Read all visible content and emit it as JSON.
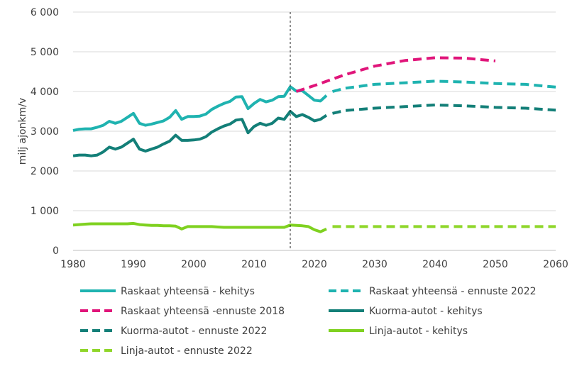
{
  "chart_data": {
    "type": "line",
    "ylabel": "milj ajonkm/v",
    "xlim": [
      1980,
      2060
    ],
    "ylim": [
      0,
      6000
    ],
    "xticks": [
      "1980",
      "1990",
      "2000",
      "2010",
      "2020",
      "2030",
      "2040",
      "2050",
      "2060"
    ],
    "yticks": [
      "0",
      "1 000",
      "2 000",
      "3 000",
      "4 000",
      "5 000",
      "6 000"
    ],
    "grid": true,
    "legend_position": "bottom",
    "reference_line_year": 2016,
    "series": [
      {
        "name": "Raskaat yhteensä - kehitys",
        "color": "#1fb3b0",
        "dashed": false,
        "x": [
          1980,
          1981,
          1982,
          1983,
          1984,
          1985,
          1986,
          1987,
          1988,
          1989,
          1990,
          1991,
          1992,
          1993,
          1994,
          1995,
          1996,
          1997,
          1998,
          1999,
          2000,
          2001,
          2002,
          2003,
          2004,
          2005,
          2006,
          2007,
          2008,
          2009,
          2010,
          2011,
          2012,
          2013,
          2014,
          2015,
          2016,
          2017,
          2018,
          2019,
          2020,
          2021,
          2022
        ],
        "y": [
          3020,
          3050,
          3060,
          3060,
          3100,
          3150,
          3250,
          3200,
          3250,
          3350,
          3450,
          3200,
          3150,
          3180,
          3220,
          3260,
          3350,
          3520,
          3300,
          3370,
          3370,
          3380,
          3430,
          3550,
          3630,
          3700,
          3750,
          3860,
          3870,
          3570,
          3700,
          3800,
          3740,
          3780,
          3870,
          3880,
          4120,
          4010,
          4020,
          3900,
          3780,
          3760,
          3900
        ]
      },
      {
        "name": "Raskaat yhteensä - ennuste 2022",
        "color": "#1fb3b0",
        "dashed": true,
        "x": [
          2023,
          2025,
          2030,
          2035,
          2040,
          2045,
          2050,
          2055,
          2060
        ],
        "y": [
          4000,
          4080,
          4180,
          4220,
          4260,
          4240,
          4200,
          4180,
          4110
        ]
      },
      {
        "name": "Raskaat yhteensä -ennuste 2018",
        "color": "#e0157a",
        "dashed": true,
        "x": [
          2017,
          2020,
          2025,
          2030,
          2035,
          2040,
          2045,
          2050
        ],
        "y": [
          4000,
          4150,
          4420,
          4640,
          4780,
          4850,
          4840,
          4770
        ]
      },
      {
        "name": "Kuorma-autot - kehitys",
        "color": "#137f78",
        "dashed": false,
        "x": [
          1980,
          1981,
          1982,
          1983,
          1984,
          1985,
          1986,
          1987,
          1988,
          1989,
          1990,
          1991,
          1992,
          1993,
          1994,
          1995,
          1996,
          1997,
          1998,
          1999,
          2000,
          2001,
          2002,
          2003,
          2004,
          2005,
          2006,
          2007,
          2008,
          2009,
          2010,
          2011,
          2012,
          2013,
          2014,
          2015,
          2016,
          2017,
          2018,
          2019,
          2020,
          2021,
          2022
        ],
        "y": [
          2380,
          2400,
          2400,
          2380,
          2400,
          2480,
          2600,
          2550,
          2600,
          2700,
          2800,
          2550,
          2500,
          2550,
          2600,
          2680,
          2750,
          2900,
          2770,
          2770,
          2780,
          2800,
          2860,
          2980,
          3060,
          3130,
          3180,
          3280,
          3300,
          2960,
          3120,
          3200,
          3150,
          3200,
          3330,
          3300,
          3500,
          3370,
          3420,
          3350,
          3260,
          3300,
          3400
        ]
      },
      {
        "name": "Kuorma-autot - ennuste 2022",
        "color": "#137f78",
        "dashed": true,
        "x": [
          2023,
          2025,
          2030,
          2035,
          2040,
          2045,
          2050,
          2055,
          2060
        ],
        "y": [
          3450,
          3520,
          3580,
          3620,
          3660,
          3640,
          3600,
          3580,
          3530
        ]
      },
      {
        "name": "Linja-autot - kehitys",
        "color": "#7fd120",
        "dashed": false,
        "x": [
          1980,
          1981,
          1982,
          1983,
          1984,
          1985,
          1986,
          1987,
          1988,
          1989,
          1990,
          1991,
          1992,
          1993,
          1994,
          1995,
          1996,
          1997,
          1998,
          1999,
          2000,
          2001,
          2002,
          2003,
          2004,
          2005,
          2006,
          2007,
          2008,
          2009,
          2010,
          2011,
          2012,
          2013,
          2014,
          2015,
          2016,
          2017,
          2018,
          2019,
          2020,
          2021,
          2022
        ],
        "y": [
          640,
          650,
          660,
          670,
          670,
          670,
          670,
          670,
          670,
          670,
          680,
          650,
          640,
          630,
          630,
          620,
          620,
          610,
          540,
          600,
          600,
          600,
          600,
          600,
          590,
          580,
          580,
          580,
          580,
          580,
          580,
          580,
          580,
          580,
          580,
          580,
          640,
          630,
          620,
          600,
          520,
          470,
          540
        ]
      },
      {
        "name": "Linja-autot - ennuste 2022",
        "color": "#8fd62a",
        "dashed": true,
        "x": [
          2023,
          2030,
          2040,
          2050,
          2060
        ],
        "y": [
          600,
          600,
          600,
          600,
          600
        ]
      }
    ]
  }
}
